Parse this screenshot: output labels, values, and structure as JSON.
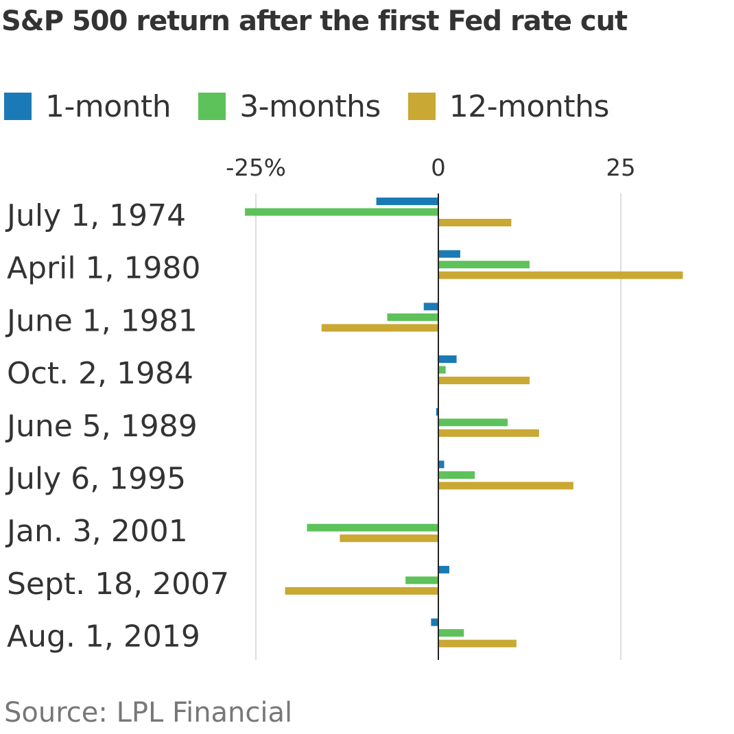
{
  "colors": {
    "one_month": "#1a7ab5",
    "three_months": "#5ec25a",
    "twelve_months": "#c9a833",
    "text": "#333333",
    "source_text": "#777777",
    "grid": "#dddddd",
    "zero_line": "#222222"
  },
  "chart_data": {
    "type": "bar",
    "orientation": "horizontal",
    "title": "S&P 500 return after the first Fed rate cut",
    "categories": [
      "July 1, 1974",
      "April 1, 1980",
      "June 1, 1981",
      "Oct. 2, 1984",
      "June 5, 1989",
      "July 6, 1995",
      "Jan. 3, 2001",
      "Sept. 18, 2007",
      "Aug. 1, 2019"
    ],
    "series": [
      {
        "name": "1-month",
        "color_key": "one_month",
        "values": [
          -8.5,
          3.0,
          -2.0,
          2.5,
          -0.3,
          0.8,
          0.0,
          1.5,
          -1.0
        ]
      },
      {
        "name": "3-months",
        "color_key": "three_months",
        "values": [
          -26.5,
          12.5,
          -7.0,
          1.0,
          9.5,
          5.0,
          -18.0,
          -4.5,
          3.5
        ]
      },
      {
        "name": "12-months",
        "color_key": "twelve_months",
        "values": [
          10.0,
          33.5,
          -16.0,
          12.5,
          13.8,
          18.5,
          -13.5,
          -21.0,
          10.7
        ]
      }
    ],
    "x_ticks": [
      {
        "value": -25,
        "label": "-25%"
      },
      {
        "value": 0,
        "label": "0"
      },
      {
        "value": 25,
        "label": "25"
      }
    ],
    "xlim": [
      -35,
      35
    ],
    "xlabel": "",
    "ylabel": "",
    "grid": true,
    "legend_position": "top-left"
  },
  "source": "Source: LPL Financial"
}
